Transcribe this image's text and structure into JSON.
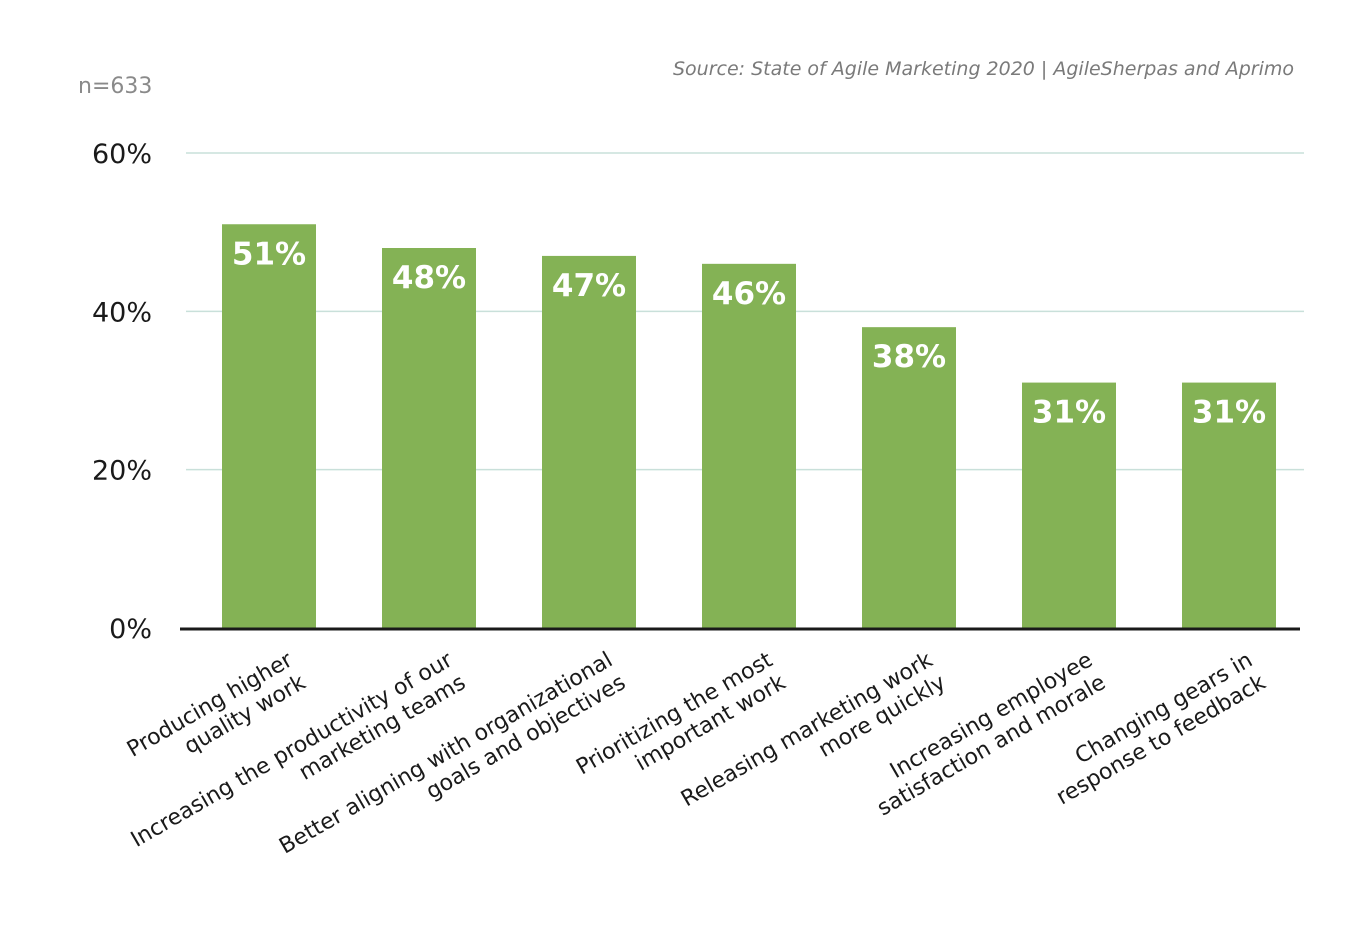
{
  "sample_size": "n=633",
  "source": "Source: State of Agile Marketing 2020 | AgileSherpas and Aprimo",
  "colors": {
    "bar": "#84b255",
    "grid": "#c9e0da",
    "axis": "#1a1a1a",
    "value_label": "#ffffff"
  },
  "chart_data": {
    "type": "bar",
    "categories": [
      [
        "Producing higher",
        "quality work"
      ],
      [
        "Increasing the productivity of our",
        "marketing teams"
      ],
      [
        "Better aligning with organizational",
        "goals and objectives"
      ],
      [
        "Prioritizing the most",
        "important work"
      ],
      [
        "Releasing marketing work",
        "more quickly"
      ],
      [
        "Increasing employee",
        "satisfaction and morale"
      ],
      [
        "Changing gears in",
        "response to feedback"
      ]
    ],
    "values": [
      51,
      48,
      47,
      46,
      38,
      31,
      31
    ],
    "value_labels": [
      "51%",
      "48%",
      "47%",
      "46%",
      "38%",
      "31%",
      "31%"
    ],
    "ylim": [
      0,
      60
    ],
    "yticks": [
      0,
      20,
      40,
      60
    ],
    "ytick_labels": [
      "0%",
      "20%",
      "40%",
      "60%"
    ],
    "grid": true,
    "xlabel": "",
    "ylabel": "",
    "title": ""
  }
}
